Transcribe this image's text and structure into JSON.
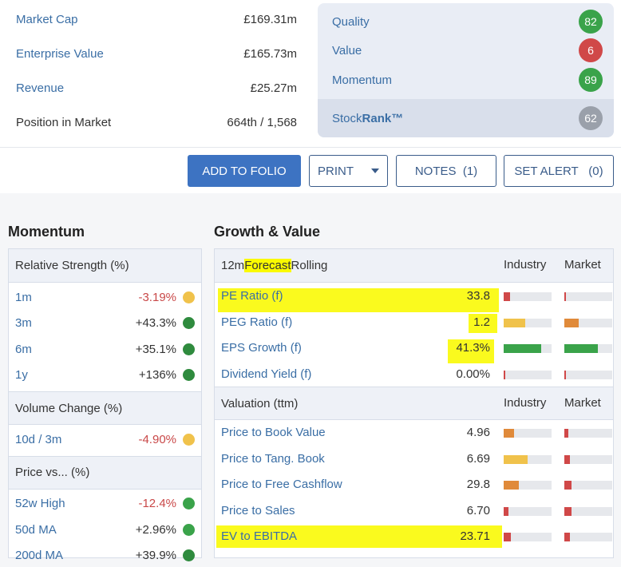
{
  "summary": [
    {
      "label": "Market Cap",
      "value": "£169.31m",
      "link": true
    },
    {
      "label": "Enterprise Value",
      "value": "£165.73m",
      "link": true
    },
    {
      "label": "Revenue",
      "value": "£25.27m",
      "link": true
    },
    {
      "label": "Position in Market",
      "value": "664th / 1,568",
      "link": false
    }
  ],
  "ranks": [
    {
      "label": "Quality",
      "value": "82",
      "color": "#3aa34a"
    },
    {
      "label": "Value",
      "value": "6",
      "color": "#d04848"
    },
    {
      "label": "Momentum",
      "value": "89",
      "color": "#3aa34a"
    }
  ],
  "stockrank": {
    "label_prefix": "Stock",
    "label_bold": "Rank™",
    "value": "62",
    "color": "#9aa0aa"
  },
  "buttons": {
    "add_to_folio": "ADD TO FOLIO",
    "print": "PRINT",
    "notes": "NOTES",
    "notes_count": "(1)",
    "set_alert": "SET ALERT",
    "alert_count": "(0)"
  },
  "momentum": {
    "title": "Momentum",
    "groups": [
      {
        "header": "Relative Strength (%)",
        "rows": [
          {
            "label": "1m",
            "value": "-3.19%",
            "neg": true,
            "dot": "#f0c24b"
          },
          {
            "label": "3m",
            "value": "+43.3%",
            "neg": false,
            "dot": "#2f8b3e"
          },
          {
            "label": "6m",
            "value": "+35.1%",
            "neg": false,
            "dot": "#2f8b3e"
          },
          {
            "label": "1y",
            "value": "+136%",
            "neg": false,
            "dot": "#2f8b3e"
          }
        ]
      },
      {
        "header": "Volume Change (%)",
        "rows": [
          {
            "label": "10d / 3m",
            "value": "-4.90%",
            "neg": true,
            "dot": "#f0c24b"
          }
        ]
      },
      {
        "header": "Price vs... (%)",
        "rows": [
          {
            "label": "52w High",
            "value": "-12.4%",
            "neg": true,
            "dot": "#3aa34a"
          },
          {
            "label": "50d MA",
            "value": "+2.96%",
            "neg": false,
            "dot": "#3aa34a"
          },
          {
            "label": "200d MA",
            "value": "+39.9%",
            "neg": false,
            "dot": "#2f8b3e"
          }
        ]
      }
    ]
  },
  "growth_value": {
    "title": "Growth & Value",
    "forecast_header": {
      "pre": "12m ",
      "hl": "Forecast",
      "post": " Rolling",
      "industry": "Industry",
      "market": "Market"
    },
    "forecast_rows": [
      {
        "label": "PE Ratio (f)",
        "value": "33.8",
        "ind": 0.14,
        "indc": "#d04848",
        "mkt": 0.04,
        "mktc": "#d04848"
      },
      {
        "label": "PEG Ratio (f)",
        "value": "1.2",
        "ind": 0.45,
        "indc": "#f0c24b",
        "mkt": 0.3,
        "mktc": "#e08a3a"
      },
      {
        "label": "EPS Growth (f)",
        "value": "41.3%",
        "ind": 0.78,
        "indc": "#3aa34a",
        "mkt": 0.7,
        "mktc": "#3aa34a"
      },
      {
        "label": "Dividend Yield (f)",
        "value": "0.00%",
        "ind": 0.03,
        "indc": "#d04848",
        "mkt": 0.03,
        "mktc": "#d04848"
      }
    ],
    "valuation_header": {
      "label": "Valuation (ttm)",
      "industry": "Industry",
      "market": "Market"
    },
    "valuation_rows": [
      {
        "label": "Price to Book Value",
        "value": "4.96",
        "ind": 0.22,
        "indc": "#e08a3a",
        "mkt": 0.08,
        "mktc": "#d04848"
      },
      {
        "label": "Price to Tang. Book",
        "value": "6.69",
        "ind": 0.5,
        "indc": "#f0c24b",
        "mkt": 0.12,
        "mktc": "#d04848"
      },
      {
        "label": "Price to Free Cashflow",
        "value": "29.8",
        "ind": 0.32,
        "indc": "#e08a3a",
        "mkt": 0.15,
        "mktc": "#d04848"
      },
      {
        "label": "Price to Sales",
        "value": "6.70",
        "ind": 0.1,
        "indc": "#d04848",
        "mkt": 0.15,
        "mktc": "#d04848"
      },
      {
        "label": "EV to EBITDA",
        "value": "23.71",
        "ind": 0.15,
        "indc": "#d04848",
        "mkt": 0.12,
        "mktc": "#d04848"
      }
    ]
  }
}
